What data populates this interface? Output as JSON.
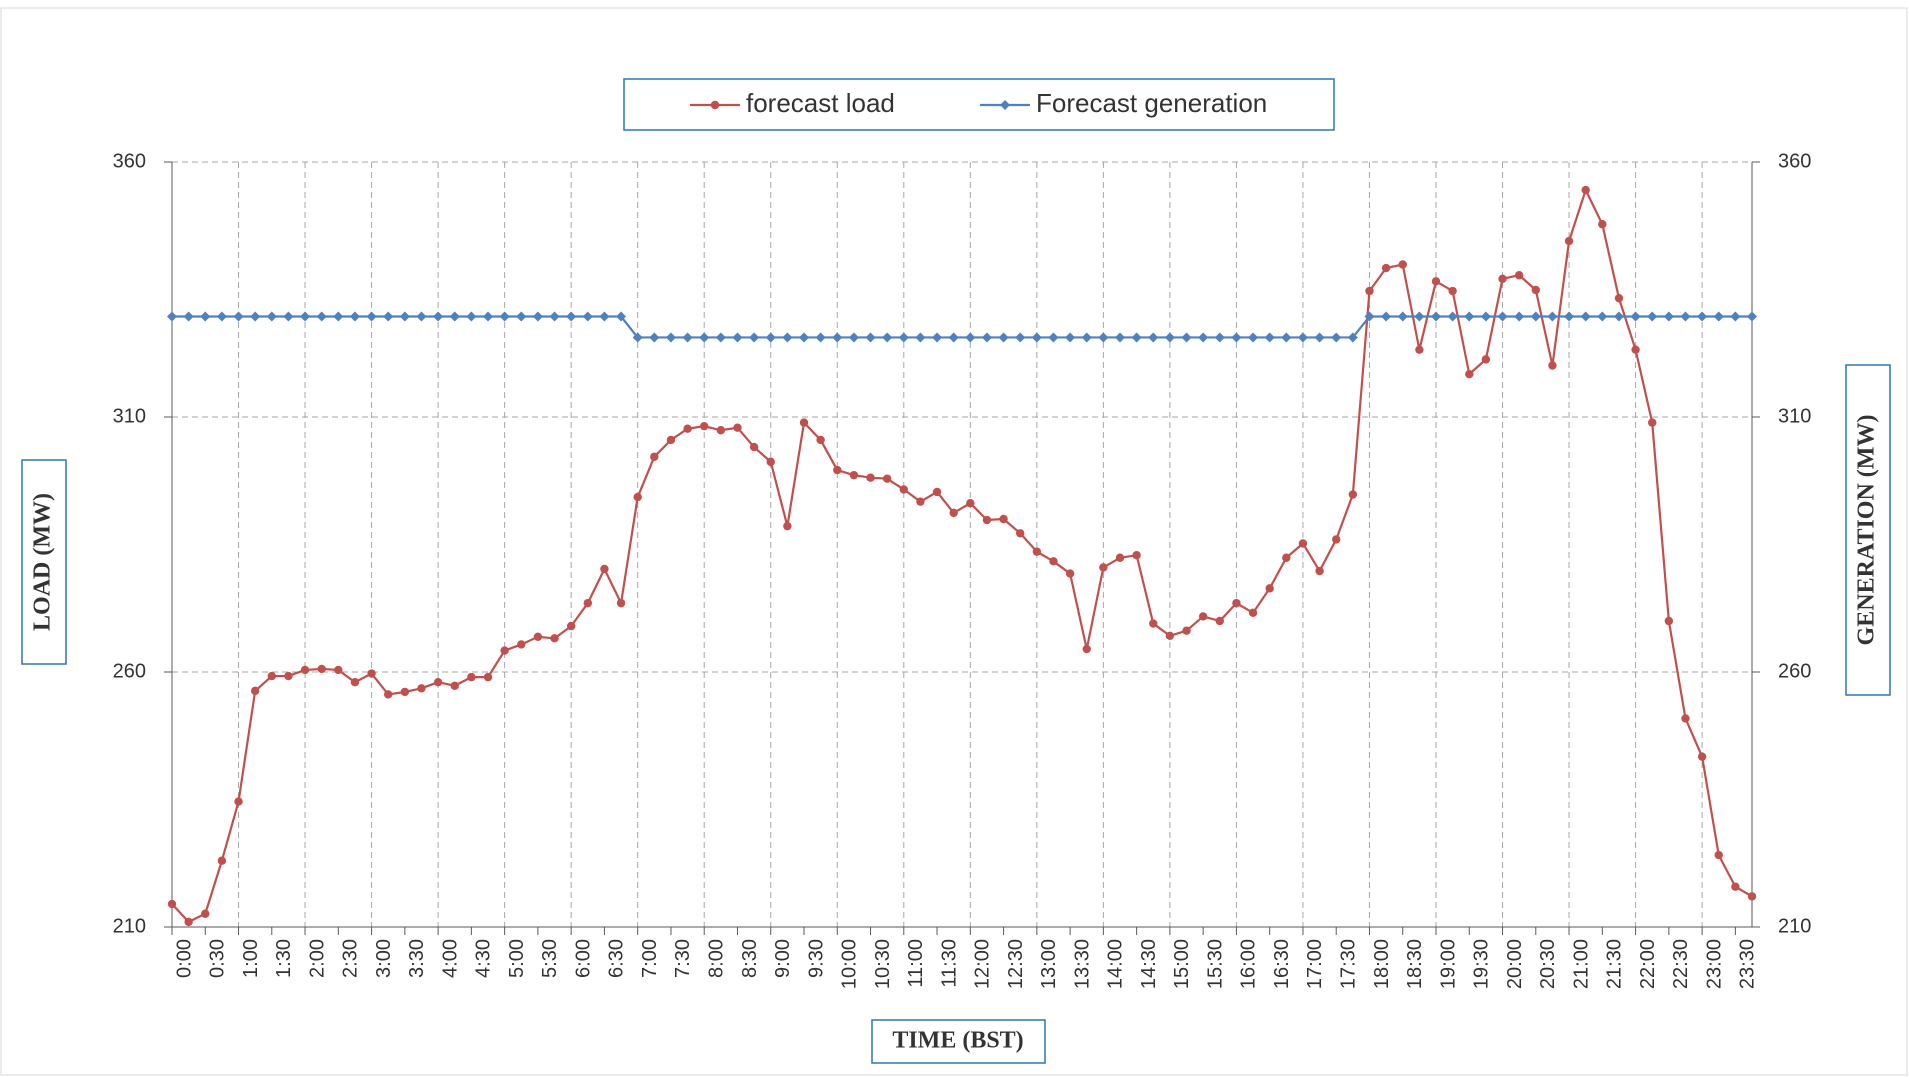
{
  "chart_data": {
    "type": "line",
    "x_label": "TIME (BST)",
    "y_label": "LOAD (MW)",
    "y2_label": "GENERATION (MW)",
    "categories": [
      "0:00",
      null,
      "0:30",
      null,
      "1:00",
      null,
      "1:30",
      null,
      "2:00",
      null,
      "2:30",
      null,
      "3:00",
      null,
      "3:30",
      null,
      "4:00",
      null,
      "4:30",
      null,
      "5:00",
      null,
      "5:30",
      null,
      "6:00",
      null,
      "6:30",
      null,
      "7:00",
      null,
      "7:30",
      null,
      "8:00",
      null,
      "8:30",
      null,
      "9:00",
      null,
      "9:30",
      null,
      "10:00",
      null,
      "10:30",
      null,
      "11:00",
      null,
      "11:30",
      null,
      "12:00",
      null,
      "12:30",
      null,
      "13:00",
      null,
      "13:30",
      null,
      "14:00",
      null,
      "14:30",
      null,
      "15:00",
      null,
      "15:30",
      null,
      "16:00",
      null,
      "16:30",
      null,
      "17:00",
      null,
      "17:30",
      null,
      "18:00",
      null,
      "18:30",
      null,
      "19:00",
      null,
      "19:30",
      null,
      "20:00",
      null,
      "20:30",
      null,
      "21:00",
      null,
      "21:30",
      null,
      "22:00",
      null,
      "22:30",
      null,
      "23:00",
      null,
      "23:30",
      null
    ],
    "series": [
      {
        "name": "forecast load",
        "color": "#c0504d",
        "marker": "circle",
        "values": [
          214.5,
          211,
          212.6,
          223,
          234.6,
          256.3,
          259.2,
          259.2,
          260.4,
          260.6,
          260.4,
          258,
          259.7,
          255.6,
          256.1,
          256.8,
          258,
          257.3,
          259,
          259,
          264.2,
          265.4,
          266.9,
          266.6,
          269,
          273.5,
          280.2,
          273.5,
          294.3,
          302.2,
          305.5,
          307.7,
          308.2,
          307.4,
          307.9,
          304.1,
          301.2,
          288.6,
          308.9,
          305.5,
          299.6,
          298.6,
          298.1,
          297.9,
          295.8,
          293.4,
          295.3,
          291.2,
          293.1,
          289.8,
          290,
          287.2,
          283.6,
          281.7,
          279.3,
          264.5,
          280.5,
          282.4,
          282.9,
          269.5,
          267.1,
          268.1,
          270.9,
          270,
          273.5,
          271.6,
          276.4,
          282.4,
          285.2,
          279.8,
          286,
          294.8,
          334.7,
          339.2,
          339.9,
          323.2,
          336.6,
          334.7,
          318.4,
          321.3,
          337.1,
          337.8,
          334.9,
          320.1,
          344.5,
          354.5,
          347.8,
          333.3,
          323.2,
          308.9,
          270,
          250.9,
          243.4,
          224.1,
          217.9,
          216
        ]
      },
      {
        "name": "Forecast generation",
        "color": "#4f81bd",
        "marker": "diamond",
        "axis": "y2",
        "values": [
          329.7,
          329.7,
          329.7,
          329.7,
          329.7,
          329.7,
          329.7,
          329.7,
          329.7,
          329.7,
          329.7,
          329.7,
          329.7,
          329.7,
          329.7,
          329.7,
          329.7,
          329.7,
          329.7,
          329.7,
          329.7,
          329.7,
          329.7,
          329.7,
          329.7,
          329.7,
          329.7,
          329.7,
          325.6,
          325.6,
          325.6,
          325.6,
          325.6,
          325.6,
          325.6,
          325.6,
          325.6,
          325.6,
          325.6,
          325.6,
          325.6,
          325.6,
          325.6,
          325.6,
          325.6,
          325.6,
          325.6,
          325.6,
          325.6,
          325.6,
          325.6,
          325.6,
          325.6,
          325.6,
          325.6,
          325.6,
          325.6,
          325.6,
          325.6,
          325.6,
          325.6,
          325.6,
          325.6,
          325.6,
          325.6,
          325.6,
          325.6,
          325.6,
          325.6,
          325.6,
          325.6,
          325.6,
          329.7,
          329.7,
          329.7,
          329.7,
          329.7,
          329.7,
          329.7,
          329.7,
          329.7,
          329.7,
          329.7,
          329.7,
          329.7,
          329.7,
          329.7,
          329.7,
          329.7,
          329.7,
          329.7,
          329.7,
          329.7,
          329.7,
          329.7,
          329.7
        ]
      }
    ],
    "ylim": [
      210,
      360
    ],
    "yticks": [
      210,
      260,
      310,
      360
    ],
    "y2lim": [
      210,
      360
    ],
    "y2ticks": [
      210,
      260,
      310,
      360
    ],
    "grid": true,
    "legend": "top"
  }
}
